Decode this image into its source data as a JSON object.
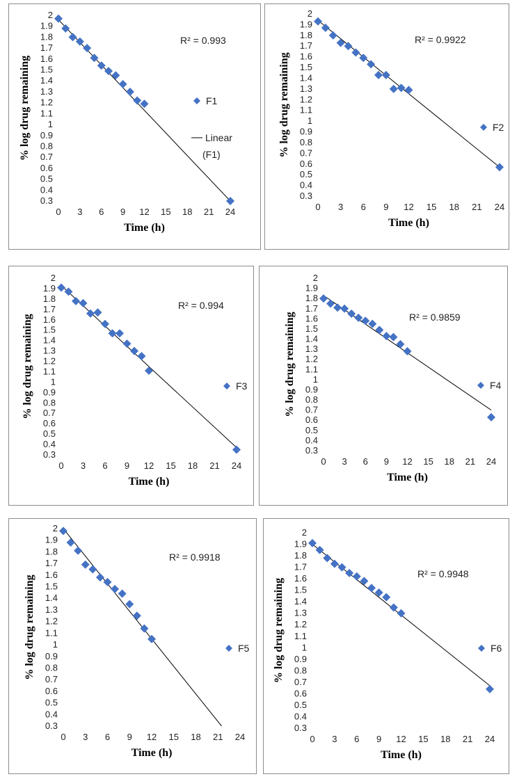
{
  "chart_data": [
    {
      "type": "scatter",
      "series": [
        {
          "name": "F1",
          "x": [
            0,
            1,
            2,
            3,
            4,
            5,
            6,
            7,
            8,
            9,
            10,
            11,
            12,
            24
          ],
          "y": [
            1.97,
            1.88,
            1.8,
            1.76,
            1.7,
            1.61,
            1.54,
            1.49,
            1.45,
            1.37,
            1.3,
            1.22,
            1.19,
            0.3
          ]
        }
      ],
      "trendline": {
        "name": "Linear (F1)",
        "x": [
          0,
          24
        ],
        "y": [
          1.96,
          0.3
        ]
      },
      "annotation": "R² = 0.993",
      "xlabel": "Time (h)",
      "ylabel": "% log drug remaining",
      "xlim": [
        0,
        24
      ],
      "ylim": [
        0.3,
        2
      ],
      "xticks": [
        0,
        3,
        6,
        9,
        12,
        15,
        18,
        21,
        24
      ],
      "yticks": [
        0.3,
        0.4,
        0.5,
        0.6,
        0.7,
        0.8,
        0.9,
        1,
        1.1,
        1.2,
        1.3,
        1.4,
        1.5,
        1.6,
        1.7,
        1.8,
        1.9,
        2
      ],
      "legend": "right",
      "marker_color": "#4472c4"
    },
    {
      "type": "scatter",
      "series": [
        {
          "name": "F2",
          "x": [
            0,
            1,
            2,
            3,
            4,
            5,
            6,
            7,
            8,
            9,
            10,
            11,
            12,
            24
          ],
          "y": [
            1.93,
            1.87,
            1.8,
            1.73,
            1.7,
            1.64,
            1.59,
            1.53,
            1.43,
            1.43,
            1.3,
            1.31,
            1.29,
            0.57
          ]
        }
      ],
      "trendline": {
        "name": "",
        "x": [
          0,
          24
        ],
        "y": [
          1.94,
          0.57
        ]
      },
      "annotation": "R² = 0.9922",
      "xlabel": "Time (h)",
      "ylabel": "% log drug remaining",
      "xlim": [
        0,
        24
      ],
      "ylim": [
        0.3,
        2
      ],
      "xticks": [
        0,
        3,
        6,
        9,
        12,
        15,
        18,
        21,
        24
      ],
      "yticks": [
        0.3,
        0.4,
        0.5,
        0.6,
        0.7,
        0.8,
        0.9,
        1,
        1.1,
        1.2,
        1.3,
        1.4,
        1.5,
        1.6,
        1.7,
        1.8,
        1.9,
        2
      ],
      "legend": "right",
      "marker_color": "#4472c4"
    },
    {
      "type": "scatter",
      "series": [
        {
          "name": "F3",
          "x": [
            0,
            1,
            2,
            3,
            4,
            5,
            6,
            7,
            8,
            9,
            10,
            11,
            12,
            24
          ],
          "y": [
            1.91,
            1.87,
            1.78,
            1.76,
            1.66,
            1.67,
            1.56,
            1.47,
            1.47,
            1.37,
            1.3,
            1.25,
            1.11,
            0.35
          ]
        }
      ],
      "trendline": {
        "name": "",
        "x": [
          0,
          24
        ],
        "y": [
          1.93,
          0.37
        ]
      },
      "annotation": "R² = 0.994",
      "xlabel": "Time (h)",
      "ylabel": "% log drug remaining",
      "xlim": [
        0,
        24
      ],
      "ylim": [
        0.3,
        2
      ],
      "xticks": [
        0,
        3,
        6,
        9,
        12,
        15,
        18,
        21,
        24
      ],
      "yticks": [
        0.3,
        0.4,
        0.5,
        0.6,
        0.7,
        0.8,
        0.9,
        1,
        1.1,
        1.2,
        1.3,
        1.4,
        1.5,
        1.6,
        1.7,
        1.8,
        1.9,
        2
      ],
      "legend": "right",
      "marker_color": "#4472c4"
    },
    {
      "type": "scatter",
      "series": [
        {
          "name": "F4",
          "x": [
            0,
            1,
            2,
            3,
            4,
            5,
            6,
            7,
            8,
            9,
            10,
            11,
            12,
            24
          ],
          "y": [
            1.8,
            1.75,
            1.71,
            1.7,
            1.65,
            1.61,
            1.58,
            1.55,
            1.49,
            1.43,
            1.42,
            1.35,
            1.28,
            0.63
          ]
        }
      ],
      "trendline": {
        "name": "",
        "x": [
          0,
          24
        ],
        "y": [
          1.83,
          0.7
        ]
      },
      "annotation": "R² = 0.9859",
      "xlabel": "Time (h)",
      "ylabel": "% log drug remaining",
      "xlim": [
        0,
        24
      ],
      "ylim": [
        0.3,
        2
      ],
      "xticks": [
        0,
        3,
        6,
        9,
        12,
        15,
        18,
        21,
        24
      ],
      "yticks": [
        0.3,
        0.4,
        0.5,
        0.6,
        0.7,
        0.8,
        0.9,
        1,
        1.1,
        1.2,
        1.3,
        1.4,
        1.5,
        1.6,
        1.7,
        1.8,
        1.9,
        2
      ],
      "legend": "right",
      "marker_color": "#4472c4"
    },
    {
      "type": "scatter",
      "series": [
        {
          "name": "F5",
          "x": [
            0,
            1,
            2,
            3,
            4,
            5,
            6,
            7,
            8,
            9,
            10,
            11,
            12
          ],
          "y": [
            1.98,
            1.88,
            1.81,
            1.69,
            1.65,
            1.58,
            1.54,
            1.48,
            1.44,
            1.35,
            1.25,
            1.14,
            1.05
          ]
        }
      ],
      "trendline": {
        "name": "",
        "x": [
          0,
          21.5
        ],
        "y": [
          2.0,
          0.3
        ]
      },
      "annotation": "R² = 0.9918",
      "xlabel": "Time (h)",
      "ylabel": "% log drug remaining",
      "xlim": [
        0,
        24
      ],
      "ylim": [
        0.3,
        2
      ],
      "xticks": [
        0,
        3,
        6,
        9,
        12,
        15,
        18,
        21,
        24
      ],
      "yticks": [
        0.3,
        0.4,
        0.5,
        0.6,
        0.7,
        0.8,
        0.9,
        1,
        1.1,
        1.2,
        1.3,
        1.4,
        1.5,
        1.6,
        1.7,
        1.8,
        1.9,
        2
      ],
      "legend": "right",
      "marker_color": "#4472c4"
    },
    {
      "type": "scatter",
      "series": [
        {
          "name": "F6",
          "x": [
            0,
            1,
            2,
            3,
            4,
            5,
            6,
            7,
            8,
            9,
            10,
            11,
            12,
            24
          ],
          "y": [
            1.91,
            1.85,
            1.78,
            1.73,
            1.7,
            1.65,
            1.62,
            1.58,
            1.52,
            1.48,
            1.44,
            1.35,
            1.3,
            0.64
          ]
        }
      ],
      "trendline": {
        "name": "",
        "x": [
          0,
          24
        ],
        "y": [
          1.9,
          0.67
        ]
      },
      "annotation": "R² = 0.9948",
      "xlabel": "Time (h)",
      "ylabel": "% log drug remaining",
      "xlim": [
        0,
        24
      ],
      "ylim": [
        0.3,
        2
      ],
      "xticks": [
        0,
        3,
        6,
        9,
        12,
        15,
        18,
        21,
        24
      ],
      "yticks": [
        0.3,
        0.4,
        0.5,
        0.6,
        0.7,
        0.8,
        0.9,
        1,
        1.1,
        1.2,
        1.3,
        1.4,
        1.5,
        1.6,
        1.7,
        1.8,
        1.9,
        2
      ],
      "legend": "right",
      "marker_color": "#4472c4"
    }
  ]
}
